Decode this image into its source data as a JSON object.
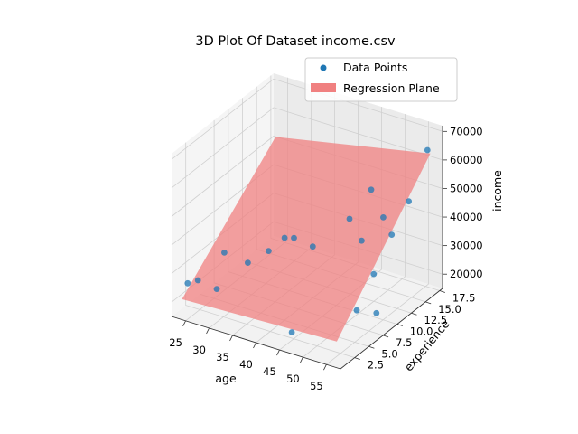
{
  "chart_data": {
    "type": "scatter",
    "title": "3D Plot Of Dataset income.csv",
    "xlabel": "age",
    "ylabel": "experience",
    "zlabel": "income",
    "x_ticks": [
      "25",
      "30",
      "35",
      "40",
      "45",
      "50",
      "55"
    ],
    "y_ticks": [
      "2.5",
      "5.0",
      "7.5",
      "10.0",
      "12.5",
      "15.0",
      "17.5"
    ],
    "z_ticks": [
      "20000",
      "30000",
      "40000",
      "50000",
      "60000",
      "70000"
    ],
    "xlim": [
      22,
      58
    ],
    "ylim": [
      0,
      18
    ],
    "zlim": [
      15000,
      72000
    ],
    "grid": true,
    "legend": {
      "position": "top-right",
      "entries": [
        {
          "label": "Data Points",
          "color": "#1f77b4",
          "marker": "circle"
        },
        {
          "label": "Regression Plane",
          "color": "#f08080",
          "marker": "patch"
        }
      ]
    },
    "series": [
      {
        "name": "Data Points",
        "color": "#1f77b4",
        "points": [
          {
            "x": 23,
            "y": 2,
            "z": 24000
          },
          {
            "x": 24,
            "y": 3,
            "z": 24000
          },
          {
            "x": 26,
            "y": 6,
            "z": 30000
          },
          {
            "x": 28,
            "y": 3,
            "z": 23000
          },
          {
            "x": 31,
            "y": 6,
            "z": 29000
          },
          {
            "x": 33,
            "y": 8,
            "z": 31000
          },
          {
            "x": 34,
            "y": 10,
            "z": 33000
          },
          {
            "x": 36,
            "y": 10,
            "z": 34000
          },
          {
            "x": 40,
            "y": 10,
            "z": 33000
          },
          {
            "x": 44,
            "y": 3,
            "z": 16000
          },
          {
            "x": 43,
            "y": 14,
            "z": 38000
          },
          {
            "x": 44,
            "y": 17,
            "z": 44000
          },
          {
            "x": 48,
            "y": 12,
            "z": 36000
          },
          {
            "x": 49,
            "y": 15,
            "z": 40000
          },
          {
            "x": 52,
            "y": 14,
            "z": 37000
          },
          {
            "x": 52,
            "y": 17,
            "z": 44000
          },
          {
            "x": 53,
            "y": 10,
            "z": 30000
          },
          {
            "x": 53,
            "y": 7,
            "z": 22000
          },
          {
            "x": 56,
            "y": 8,
            "z": 21000
          },
          {
            "x": 56,
            "y": 17,
            "z": 64000
          }
        ]
      }
    ],
    "regression_plane": {
      "name": "Regression Plane",
      "color": "#f08080",
      "opacity": 0.75,
      "corners": [
        {
          "x": 23,
          "y": 1,
          "z": 20000
        },
        {
          "x": 56,
          "y": 1,
          "z": 22000
        },
        {
          "x": 56,
          "y": 17.5,
          "z": 62000
        },
        {
          "x": 23,
          "y": 17.5,
          "z": 51000
        }
      ]
    }
  }
}
